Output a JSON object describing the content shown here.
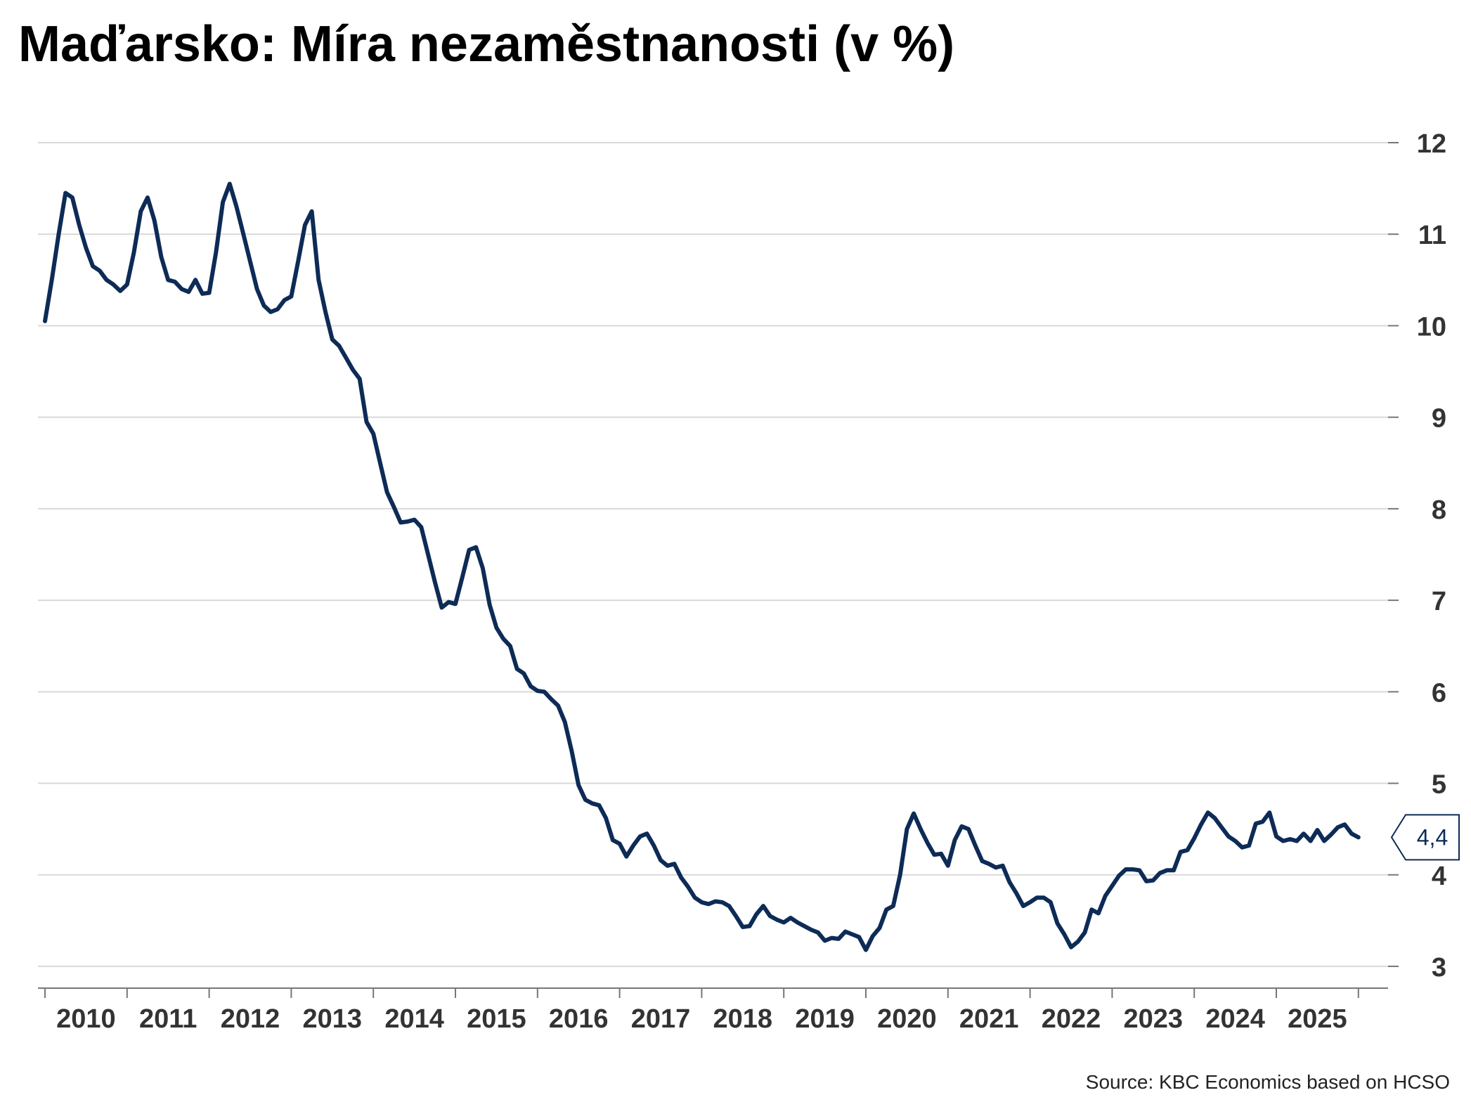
{
  "title": "Maďarsko: Míra nezaměstnanosti (v %)",
  "source": "Source: KBC Economics based on HCSO",
  "colors": {
    "line": "#0d2b56",
    "grid": "#d9d9d9",
    "axis": "#777777",
    "text": "#333333"
  },
  "chart_data": {
    "type": "line",
    "title": "Maďarsko: Míra nezaměstnanosti (v %)",
    "xlabel": "",
    "ylabel": "",
    "ylim": [
      3,
      12
    ],
    "y_ticks": [
      "3",
      "4",
      "5",
      "6",
      "7",
      "8",
      "9",
      "10",
      "11",
      "12"
    ],
    "x_ticks": [
      "2010",
      "2011",
      "2012",
      "2013",
      "2014",
      "2015",
      "2016",
      "2017",
      "2018",
      "2019",
      "2020",
      "2021",
      "2022",
      "2023",
      "2024",
      "2025"
    ],
    "grid": true,
    "y_axis_position": "right",
    "last_value_label": "4,4",
    "x_start_year": 2010,
    "series": [
      {
        "values": [
          10.05,
          10.5,
          11.0,
          11.45,
          11.4,
          11.1,
          10.85,
          10.65,
          10.6,
          10.5,
          10.45,
          10.38,
          10.45,
          10.8,
          11.25,
          11.4,
          11.15,
          10.75,
          10.5,
          10.48,
          10.4,
          10.37,
          10.5,
          10.35,
          10.36,
          10.8,
          11.35,
          11.55,
          11.3,
          11.0,
          10.7,
          10.4,
          10.22,
          10.15,
          10.18,
          10.28,
          10.32,
          10.7,
          11.1,
          11.25,
          10.5,
          10.15,
          9.85,
          9.78,
          9.65,
          9.52,
          9.42,
          8.95,
          8.82,
          8.5,
          8.18,
          8.02,
          7.85,
          7.86,
          7.88,
          7.8,
          7.5,
          7.2,
          6.92,
          6.98,
          6.96,
          7.25,
          7.55,
          7.58,
          7.35,
          6.95,
          6.7,
          6.58,
          6.5,
          6.25,
          6.2,
          6.06,
          6.01,
          6.0,
          5.92,
          5.85,
          5.67,
          5.35,
          4.98,
          4.82,
          4.78,
          4.76,
          4.62,
          4.38,
          4.34,
          4.2,
          4.32,
          4.42,
          4.45,
          4.32,
          4.16,
          4.1,
          4.12,
          3.97,
          3.87,
          3.75,
          3.7,
          3.68,
          3.71,
          3.7,
          3.66,
          3.55,
          3.43,
          3.44,
          3.57,
          3.66,
          3.55,
          3.51,
          3.48,
          3.53,
          3.48,
          3.44,
          3.4,
          3.37,
          3.28,
          3.31,
          3.3,
          3.38,
          3.35,
          3.32,
          3.18,
          3.33,
          3.42,
          3.62,
          3.66,
          4.0,
          4.5,
          4.67,
          4.5,
          4.35,
          4.22,
          4.23,
          4.1,
          4.38,
          4.53,
          4.5,
          4.32,
          4.15,
          4.12,
          4.08,
          4.1,
          3.92,
          3.8,
          3.66,
          3.7,
          3.75,
          3.75,
          3.7,
          3.47,
          3.35,
          3.21,
          3.27,
          3.37,
          3.62,
          3.58,
          3.77,
          3.88,
          3.99,
          4.06,
          4.06,
          4.05,
          3.93,
          3.94,
          4.02,
          4.05,
          4.05,
          4.25,
          4.27,
          4.4,
          4.55,
          4.68,
          4.62,
          4.52,
          4.42,
          4.37,
          4.3,
          4.32,
          4.56,
          4.58,
          4.68,
          4.42,
          4.37,
          4.39,
          4.37,
          4.45,
          4.37,
          4.49,
          4.37,
          4.44,
          4.52,
          4.55,
          4.45,
          4.41
        ]
      }
    ]
  }
}
